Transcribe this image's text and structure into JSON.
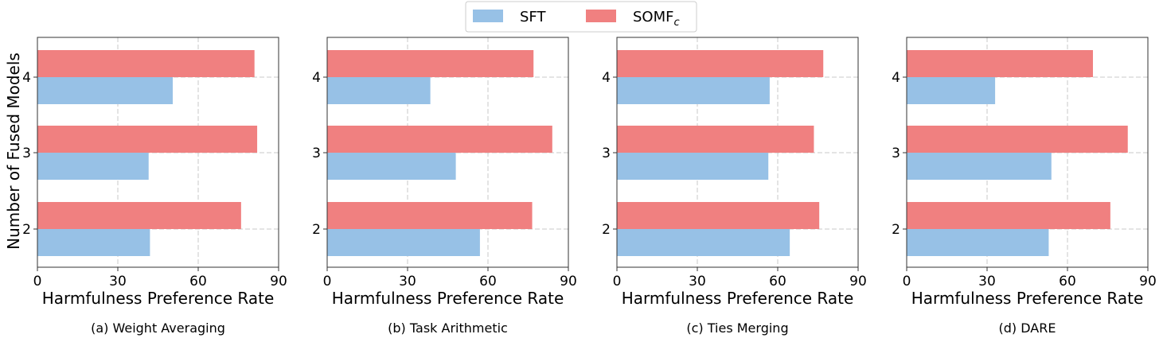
{
  "legend": {
    "items": [
      {
        "label": "SFT",
        "color": "#97c1e6"
      },
      {
        "label": "SOMF",
        "subscript": "c",
        "color": "#f08080"
      }
    ]
  },
  "chart_data": {
    "type": "bar",
    "orientation": "horizontal",
    "ylabel": "Number of Fused Models",
    "xlabel": "Harmfulness Preference Rate",
    "xlim": [
      0,
      90
    ],
    "xticks": [
      0,
      30,
      60,
      90
    ],
    "categories": [
      "2",
      "3",
      "4"
    ],
    "grid": true,
    "legend_position": "top-center",
    "panels": [
      {
        "caption": "(a) Weight Averaging",
        "series": [
          {
            "name": "SFT",
            "values": [
              42,
              41.5,
              50.5
            ]
          },
          {
            "name": "SOMFc",
            "values": [
              76,
              82,
              81
            ]
          }
        ]
      },
      {
        "caption": "(b) Task Arithmetic",
        "series": [
          {
            "name": "SFT",
            "values": [
              57,
              48,
              38.5
            ]
          },
          {
            "name": "SOMFc",
            "values": [
              76.5,
              84,
              77
            ]
          }
        ]
      },
      {
        "caption": "(c) Ties Merging",
        "series": [
          {
            "name": "SFT",
            "values": [
              64.5,
              56.5,
              57
            ]
          },
          {
            "name": "SOMFc",
            "values": [
              75.5,
              73.5,
              77
            ]
          }
        ]
      },
      {
        "caption": "(d) DARE",
        "series": [
          {
            "name": "SFT",
            "values": [
              53,
              54,
              33
            ]
          },
          {
            "name": "SOMFc",
            "values": [
              76,
              82.5,
              69.5
            ]
          }
        ]
      }
    ]
  }
}
